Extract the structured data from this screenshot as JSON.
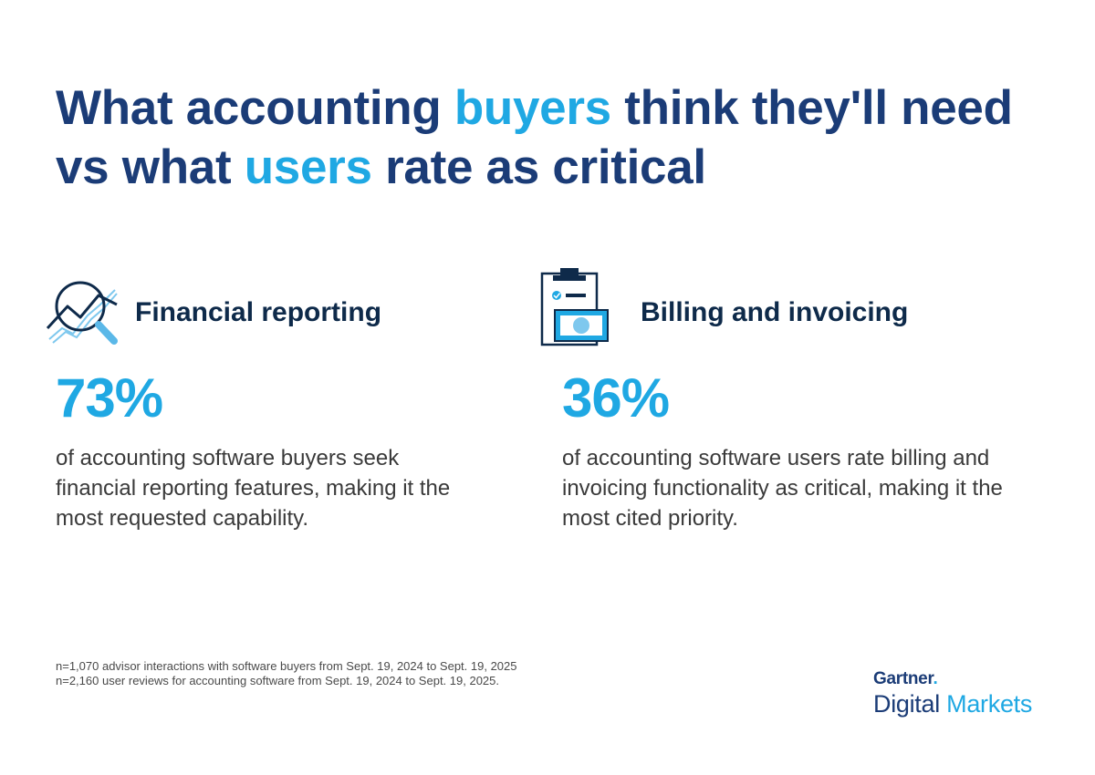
{
  "title": {
    "part1": "What accounting ",
    "accent1": "buyers",
    "part2": " think they'll need vs what ",
    "accent2": "users",
    "part3": " rate as critical"
  },
  "stats": [
    {
      "icon": "chart-magnifier-icon",
      "label": "Financial reporting",
      "value": "73%",
      "description": "of accounting software buyers seek financial reporting features, making it the most requested capability."
    },
    {
      "icon": "invoice-clipboard-icon",
      "label": "Billing and invoicing",
      "value": "36%",
      "description": "of accounting software users rate billing and invoicing functionality as critical, making it the most cited priority."
    }
  ],
  "footnotes": [
    "n=1,070 advisor interactions with software buyers from Sept. 19, 2024 to Sept. 19, 2025",
    "n=2,160 user reviews for accounting software from Sept. 19, 2024 to Sept. 19, 2025."
  ],
  "brand": {
    "line1": "Gartner",
    "line1_dot": ".",
    "line2_word1": "Digital",
    "line2_word2": "Markets"
  },
  "colors": {
    "navy": "#1b3c77",
    "accent": "#1fa8e3",
    "label": "#0e2a4a",
    "body": "#3a3a3a"
  }
}
